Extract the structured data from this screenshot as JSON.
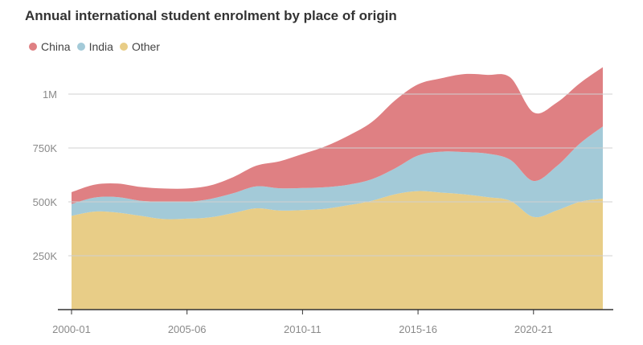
{
  "chart_data": {
    "type": "area",
    "stacked": true,
    "title": "Annual international student enrolment by place of origin",
    "xlabel": "",
    "ylabel": "",
    "grid": "horizontal",
    "legend_position": "top-left",
    "x": [
      "2000-01",
      "2001-02",
      "2002-03",
      "2003-04",
      "2004-05",
      "2005-06",
      "2006-07",
      "2007-08",
      "2008-09",
      "2009-10",
      "2010-11",
      "2011-12",
      "2012-13",
      "2013-14",
      "2014-15",
      "2015-16",
      "2016-17",
      "2017-18",
      "2018-19",
      "2019-20",
      "2020-21",
      "2021-22",
      "2022-23",
      "2023-24"
    ],
    "x_tick_labels": [
      "2000-01",
      "2005-06",
      "2010-11",
      "2015-16",
      "2020-21"
    ],
    "y_ticks": [
      250000,
      500000,
      750000,
      1000000
    ],
    "y_tick_labels": [
      "250K",
      "500K",
      "750K",
      "1M"
    ],
    "ylim": [
      0,
      1200000
    ],
    "series": [
      {
        "name": "Other",
        "color": "#e8cd87",
        "values": [
          435000,
          455000,
          450000,
          435000,
          420000,
          422000,
          428000,
          448000,
          470000,
          460000,
          462000,
          468000,
          485000,
          505000,
          535000,
          550000,
          543000,
          535000,
          522000,
          505000,
          430000,
          460000,
          500000,
          515000
        ]
      },
      {
        "name": "India",
        "color": "#a3cad8",
        "values": [
          55000,
          65000,
          72000,
          70000,
          80000,
          78000,
          85000,
          92000,
          102000,
          103000,
          102000,
          100000,
          95000,
          100000,
          120000,
          165000,
          190000,
          196000,
          202000,
          190000,
          167000,
          205000,
          270000,
          335000
        ]
      },
      {
        "name": "China",
        "color": "#df8083",
        "values": [
          55000,
          60000,
          63000,
          64000,
          62000,
          62000,
          63000,
          75000,
          96000,
          125000,
          158000,
          190000,
          228000,
          265000,
          315000,
          330000,
          340000,
          362000,
          365000,
          382000,
          318000,
          295000,
          280000,
          275000
        ]
      }
    ]
  }
}
